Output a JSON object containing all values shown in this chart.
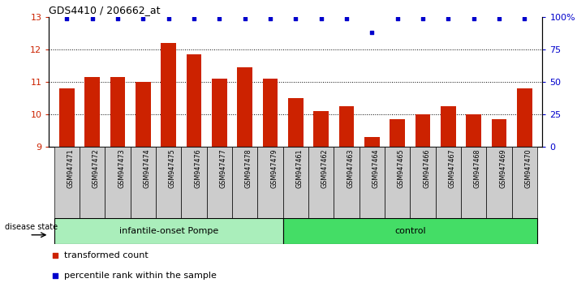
{
  "title": "GDS4410 / 206662_at",
  "samples": [
    "GSM947471",
    "GSM947472",
    "GSM947473",
    "GSM947474",
    "GSM947475",
    "GSM947476",
    "GSM947477",
    "GSM947478",
    "GSM947479",
    "GSM947461",
    "GSM947462",
    "GSM947463",
    "GSM947464",
    "GSM947465",
    "GSM947466",
    "GSM947467",
    "GSM947468",
    "GSM947469",
    "GSM947470"
  ],
  "bar_values": [
    10.8,
    11.15,
    11.15,
    11.0,
    12.2,
    11.85,
    11.1,
    11.45,
    11.1,
    10.5,
    10.1,
    10.25,
    9.3,
    9.85,
    10.0,
    10.25,
    10.0,
    9.85,
    10.8
  ],
  "percentile_values": [
    99,
    99,
    99,
    99,
    99,
    99,
    99,
    99,
    99,
    99,
    99,
    99,
    88,
    99,
    99,
    99,
    99,
    99,
    99
  ],
  "bar_color": "#cc2200",
  "dot_color": "#0000cc",
  "ylim_left": [
    9,
    13
  ],
  "ylim_right": [
    0,
    100
  ],
  "yticks_left": [
    9,
    10,
    11,
    12,
    13
  ],
  "yticks_right": [
    0,
    25,
    50,
    75,
    100
  ],
  "ytick_labels_right": [
    "0",
    "25",
    "50",
    "75",
    "100%"
  ],
  "group1_label": "infantile-onset Pompe",
  "group2_label": "control",
  "group1_count": 9,
  "group2_count": 10,
  "disease_state_label": "disease state",
  "legend_bar_label": "transformed count",
  "legend_dot_label": "percentile rank within the sample",
  "group1_color": "#aaeebb",
  "group2_color": "#44dd66",
  "tick_bg_color": "#cccccc",
  "bar_bottom": 9,
  "bar_width": 0.6
}
